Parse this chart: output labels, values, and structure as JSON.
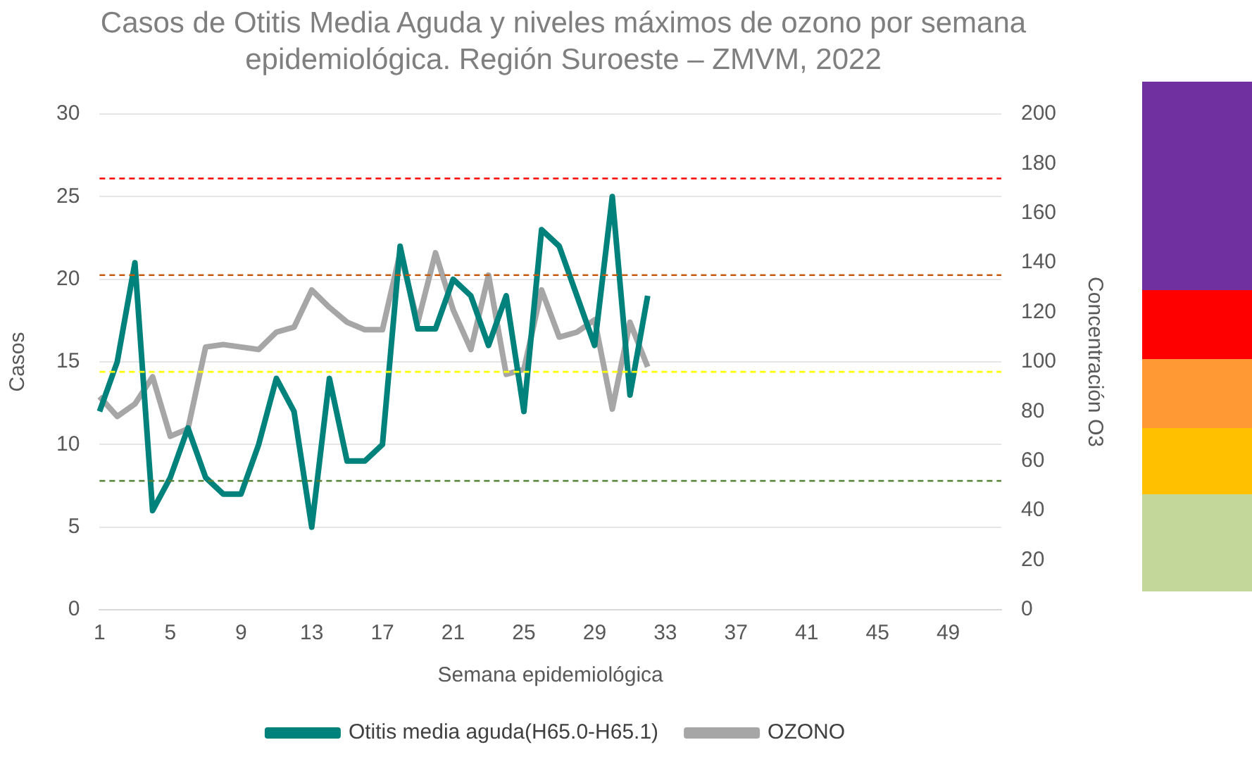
{
  "chart_data": {
    "type": "line",
    "title": "Casos de Otitis Media Aguda y niveles máximos de ozono por semana epidemiológica. Región Suroeste – ZMVM, 2022",
    "xlabel": "Semana epidemiológica",
    "ylabel": "Casos",
    "y2label": "Concentración O3",
    "categories": [
      "1",
      null,
      null,
      null,
      "5",
      null,
      null,
      null,
      "9",
      null,
      null,
      null,
      "13",
      null,
      null,
      null,
      "17",
      null,
      null,
      null,
      "21",
      null,
      null,
      null,
      "25",
      null,
      null,
      null,
      "29",
      null,
      null,
      null,
      "33",
      null,
      null,
      null,
      "37",
      null,
      null,
      null,
      "41",
      null,
      null,
      null,
      "45",
      null,
      null,
      null,
      "49",
      null,
      null,
      null
    ],
    "series": [
      {
        "name": "Otitis media aguda(H65.0-H65.1)",
        "color": "#00827c",
        "values": [
          12,
          15,
          21,
          6,
          8,
          11,
          8,
          7,
          7,
          10,
          14,
          12,
          5,
          14,
          9,
          9,
          10,
          22,
          17,
          17,
          20,
          19,
          16,
          19,
          12,
          23,
          22,
          19,
          16,
          25,
          13,
          19,
          null,
          null,
          null,
          null,
          null,
          null,
          null,
          null,
          null,
          null,
          null,
          null,
          null,
          null,
          null,
          null,
          null,
          null,
          null,
          null
        ]
      },
      {
        "name": "OZONO",
        "color": "#a6a6a6",
        "axis": "y2",
        "values": [
          86,
          78,
          83,
          94,
          70,
          73,
          106,
          107,
          106,
          105,
          112,
          114,
          129,
          122,
          116,
          113,
          113,
          144,
          116,
          144,
          121,
          105,
          135,
          95,
          97,
          129,
          110,
          112,
          117,
          81,
          116,
          98,
          null,
          null,
          null,
          null,
          null,
          null,
          null,
          null,
          null,
          null,
          null,
          null,
          null,
          null,
          null,
          null,
          null,
          null,
          null,
          null
        ]
      }
    ],
    "ylim": [
      0,
      30
    ],
    "yticks": [
      0,
      5,
      10,
      15,
      20,
      25,
      30
    ],
    "y2lim": [
      0,
      200
    ],
    "y2ticks": [
      0,
      20,
      40,
      60,
      80,
      100,
      120,
      140,
      160,
      180,
      200
    ],
    "ref_lines": [
      {
        "axis": "y2",
        "value": 174,
        "color": "#ff0000",
        "line_style": "dashed"
      },
      {
        "axis": "y2",
        "value": 135,
        "color": "#c55a11",
        "line_style": "dashed"
      },
      {
        "axis": "y2",
        "value": 96,
        "color": "#ffff00",
        "line_style": "dashed"
      },
      {
        "axis": "y2",
        "value": 52,
        "color": "#538135",
        "line_style": "dashed"
      }
    ],
    "grid": "y",
    "legend": "bottom",
    "marker": "none",
    "line_style": "solid"
  }
}
